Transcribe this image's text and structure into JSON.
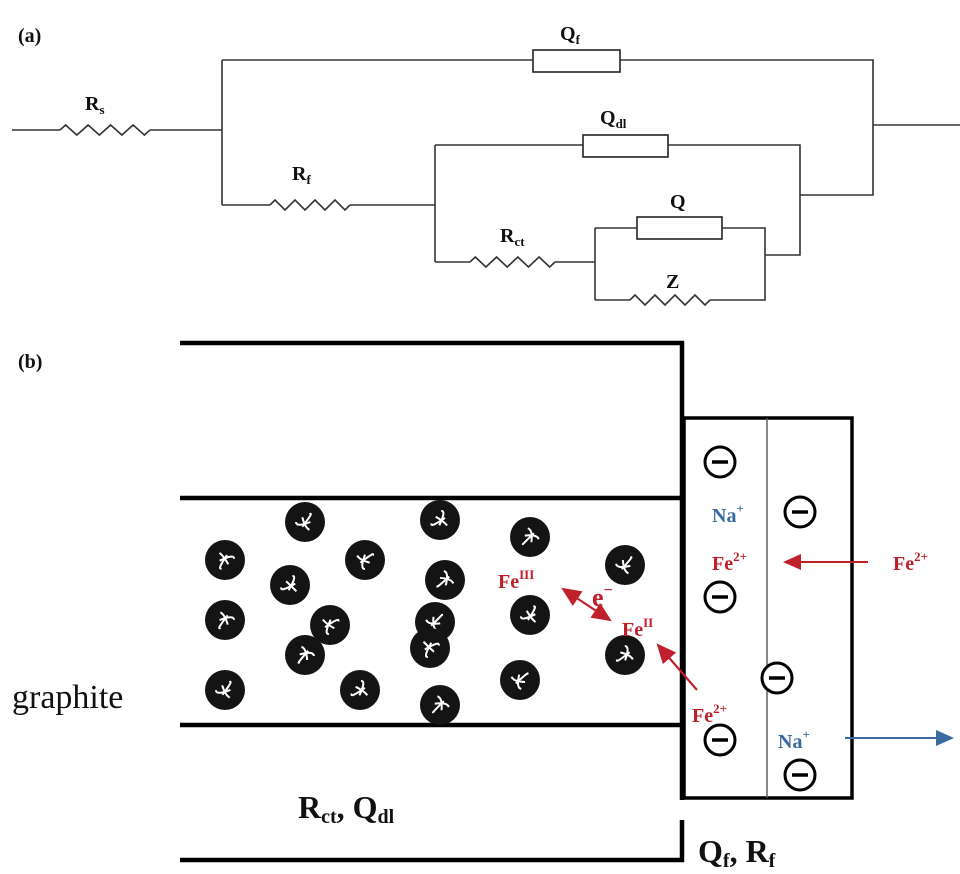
{
  "panel_a": {
    "label": "(a)",
    "R_s": {
      "symbol": "R",
      "subscript": "s"
    },
    "Q_f": {
      "symbol": "Q",
      "subscript": "f"
    },
    "Q_dl": {
      "symbol": "Q",
      "subscript": "dl"
    },
    "R_f": {
      "symbol": "R",
      "subscript": "f"
    },
    "Q": {
      "symbol": "Q"
    },
    "R_ct": {
      "symbol": "R",
      "subscript": "ct"
    },
    "Z": {
      "symbol": "Z"
    }
  },
  "panel_b": {
    "label": "(b)",
    "electrode": "graphite",
    "na_upper": {
      "symbol": "Na",
      "charge": "+"
    },
    "fe2_film": {
      "symbol": "Fe",
      "charge": "2+"
    },
    "fe2_solution": {
      "symbol": "Fe",
      "charge": "2+"
    },
    "fe_iii": {
      "symbol": "Fe",
      "oxidation": "III"
    },
    "electron": {
      "symbol": "e",
      "charge": "−"
    },
    "fe_ii": {
      "symbol": "Fe",
      "oxidation": "II"
    },
    "fe2_lower": {
      "symbol": "Fe",
      "charge": "2+"
    },
    "na_lower": {
      "symbol": "Na",
      "charge": "+"
    },
    "pore_elements": {
      "first": {
        "symbol": "R",
        "subscript": "ct"
      },
      "separator": ", ",
      "second": {
        "symbol": "Q",
        "subscript": "dl"
      }
    },
    "film_elements": {
      "first": {
        "symbol": "Q",
        "subscript": "f"
      },
      "separator": ", ",
      "second": {
        "symbol": "R",
        "subscript": "f"
      }
    }
  }
}
